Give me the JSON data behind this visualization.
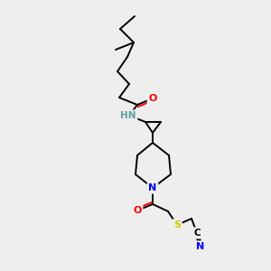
{
  "background_color": "#eeeeee",
  "bond_color": "#000000",
  "atom_colors": {
    "O": "#ff0000",
    "N": "#0000ff",
    "S": "#cccc00",
    "C": "#000000",
    "H": "#5f9ea0"
  },
  "figsize": [
    3.0,
    3.0
  ],
  "dpi": 100
}
